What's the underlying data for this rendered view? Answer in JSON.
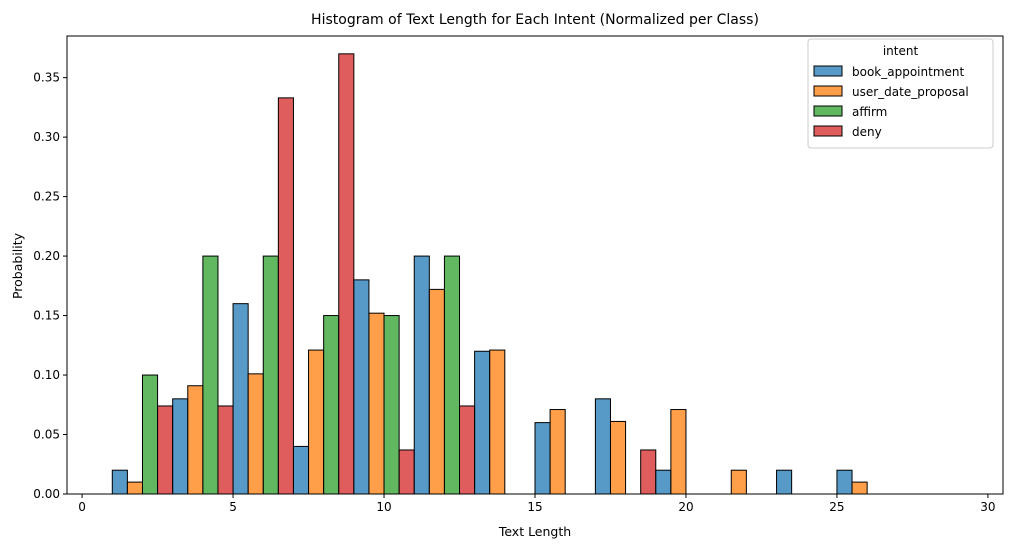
{
  "chart_data": {
    "type": "bar",
    "title": "Histogram of Text Length for Each Intent (Normalized per Class)",
    "xlabel": "Text Length",
    "ylabel": "Probability",
    "xlim": [
      -0.5,
      30.5
    ],
    "ylim": [
      0,
      0.385
    ],
    "xticks": [
      0,
      5,
      10,
      15,
      20,
      25,
      30
    ],
    "yticks": [
      0.0,
      0.05,
      0.1,
      0.15,
      0.2,
      0.25,
      0.3,
      0.35
    ],
    "grid": false,
    "legend": {
      "title": "intent",
      "placement": "top-right"
    },
    "bin_centers": [
      2,
      4,
      6,
      8,
      10,
      12,
      14,
      16,
      18,
      20,
      22,
      24,
      26,
      28
    ],
    "bin_width": 2,
    "series": [
      {
        "name": "book_appointment",
        "color": "#1f77b4",
        "values": [
          0.02,
          0.08,
          0.16,
          0.04,
          0.18,
          0.2,
          0.12,
          0.06,
          0.08,
          0.02,
          0,
          0.02,
          0.02,
          0
        ]
      },
      {
        "name": "user_date_proposal",
        "color": "#ff7f0e",
        "values": [
          0.01,
          0.091,
          0.101,
          0.121,
          0.152,
          0.172,
          0.121,
          0.071,
          0.061,
          0.071,
          0.02,
          0,
          0.01,
          0
        ]
      },
      {
        "name": "affirm",
        "color": "#2ca02c",
        "values": [
          0.1,
          0.2,
          0.2,
          0.15,
          0.15,
          0.2,
          0,
          0,
          0,
          0,
          0,
          0,
          0,
          0
        ]
      },
      {
        "name": "deny",
        "color": "#d62728",
        "values": [
          0.074,
          0.074,
          0.333,
          0.37,
          0.037,
          0.074,
          0,
          0,
          0.037,
          0,
          0,
          0,
          0,
          0
        ]
      }
    ]
  }
}
